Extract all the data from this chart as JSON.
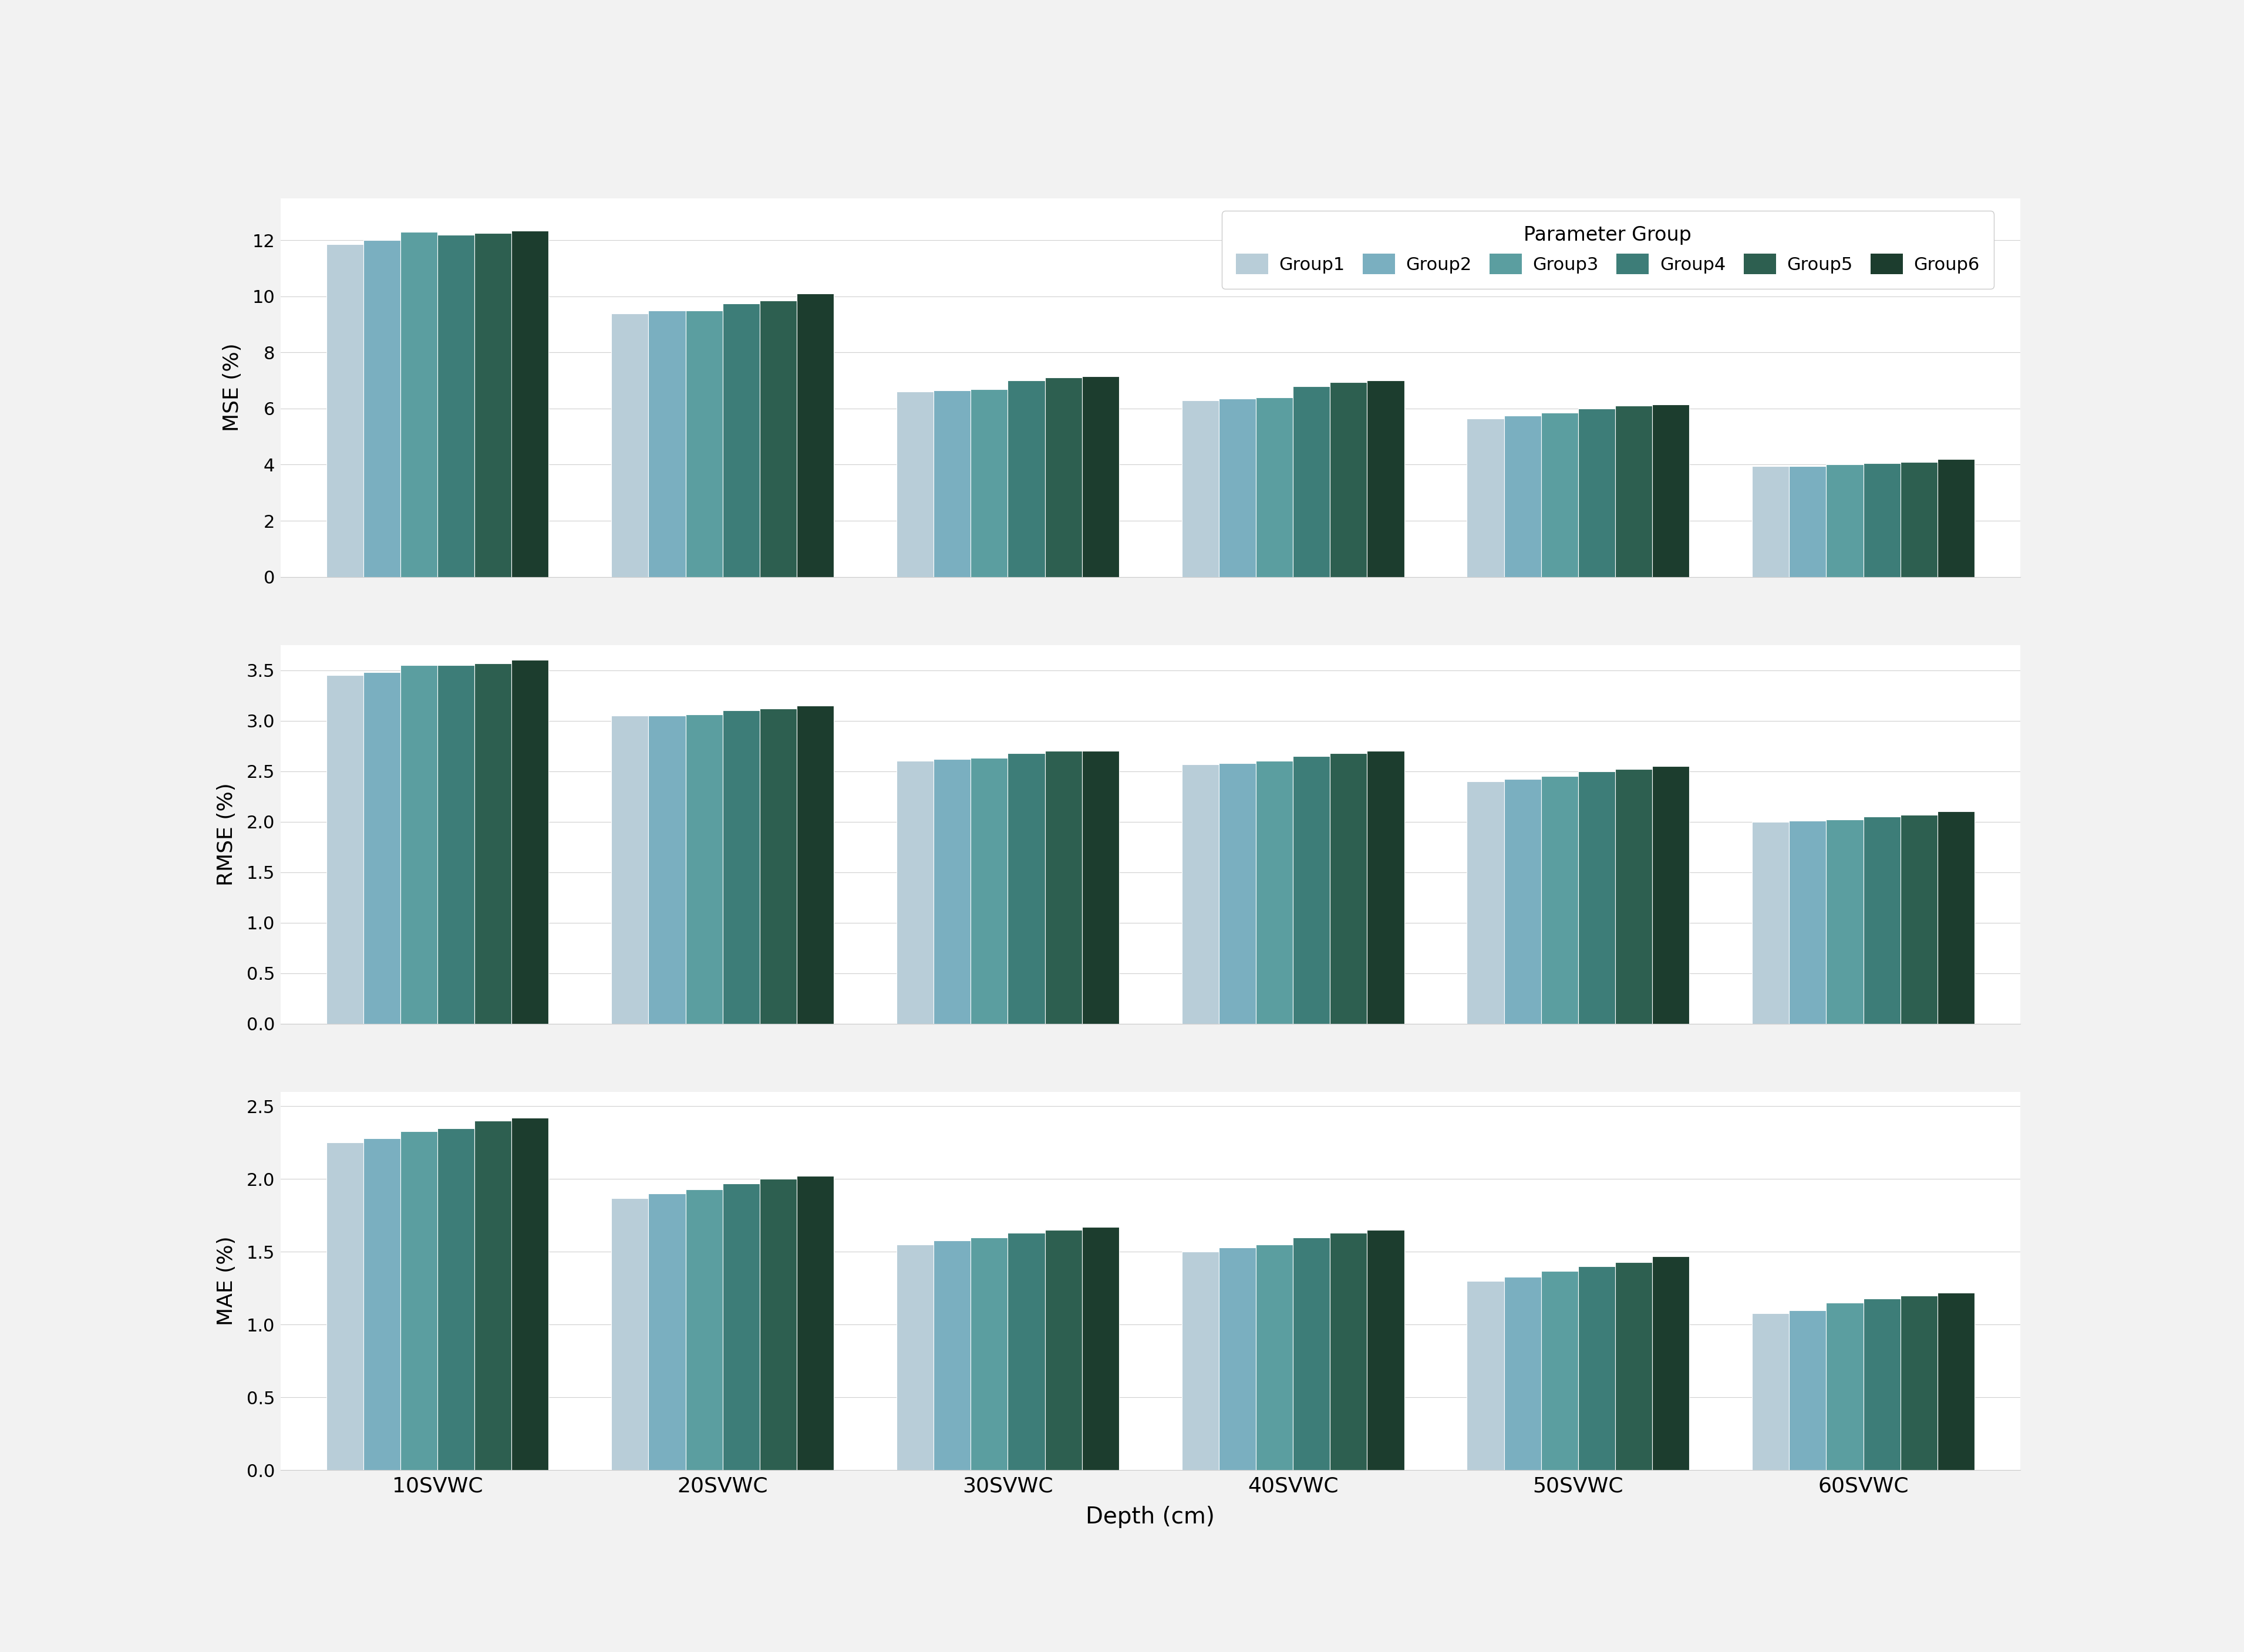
{
  "categories": [
    "10SVWC",
    "20SVWC",
    "30SVWC",
    "40SVWC",
    "50SVWC",
    "60SVWC"
  ],
  "groups": [
    "Group1",
    "Group2",
    "Group3",
    "Group4",
    "Group5",
    "Group6"
  ],
  "colors": [
    "#b8cdd8",
    "#7aafc0",
    "#5b9ea0",
    "#3d7d78",
    "#2d5f50",
    "#1c3d2e"
  ],
  "mse_values": [
    [
      11.85,
      12.0,
      12.3,
      12.2,
      12.25,
      12.35
    ],
    [
      9.4,
      9.5,
      9.5,
      9.75,
      9.85,
      10.1
    ],
    [
      6.6,
      6.65,
      6.7,
      7.0,
      7.1,
      7.15
    ],
    [
      6.3,
      6.35,
      6.4,
      6.8,
      6.95,
      7.0
    ],
    [
      5.65,
      5.75,
      5.85,
      6.0,
      6.1,
      6.15
    ],
    [
      3.95,
      3.95,
      4.0,
      4.05,
      4.1,
      4.2
    ]
  ],
  "rmse_values": [
    [
      3.45,
      3.48,
      3.55,
      3.55,
      3.57,
      3.6
    ],
    [
      3.05,
      3.05,
      3.06,
      3.1,
      3.12,
      3.15
    ],
    [
      2.6,
      2.62,
      2.63,
      2.68,
      2.7,
      2.7
    ],
    [
      2.57,
      2.58,
      2.6,
      2.65,
      2.68,
      2.7
    ],
    [
      2.4,
      2.42,
      2.45,
      2.5,
      2.52,
      2.55
    ],
    [
      2.0,
      2.01,
      2.02,
      2.05,
      2.07,
      2.1
    ]
  ],
  "mae_values": [
    [
      2.25,
      2.28,
      2.33,
      2.35,
      2.4,
      2.42
    ],
    [
      1.87,
      1.9,
      1.93,
      1.97,
      2.0,
      2.02
    ],
    [
      1.55,
      1.58,
      1.6,
      1.63,
      1.65,
      1.67
    ],
    [
      1.5,
      1.53,
      1.55,
      1.6,
      1.63,
      1.65
    ],
    [
      1.3,
      1.33,
      1.37,
      1.4,
      1.43,
      1.47
    ],
    [
      1.08,
      1.1,
      1.15,
      1.18,
      1.2,
      1.22
    ]
  ],
  "mse_ylim": [
    0,
    13.5
  ],
  "rmse_ylim": [
    0.0,
    3.75
  ],
  "mae_ylim": [
    0.0,
    2.6
  ],
  "mse_yticks": [
    0,
    2,
    4,
    6,
    8,
    10,
    12
  ],
  "rmse_yticks": [
    0.0,
    0.5,
    1.0,
    1.5,
    2.0,
    2.5,
    3.0,
    3.5
  ],
  "mae_yticks": [
    0.0,
    0.5,
    1.0,
    1.5,
    2.0,
    2.5
  ],
  "ylabel_mse": "MSE (%)",
  "ylabel_rmse": "RMSE (%)",
  "ylabel_mae": "MAE (%)",
  "xlabel": "Depth (cm)",
  "legend_title": "Parameter Group",
  "background_color": "#f2f2f2",
  "bar_width": 0.13,
  "xlim_left": -0.55,
  "xlim_right": 5.55
}
